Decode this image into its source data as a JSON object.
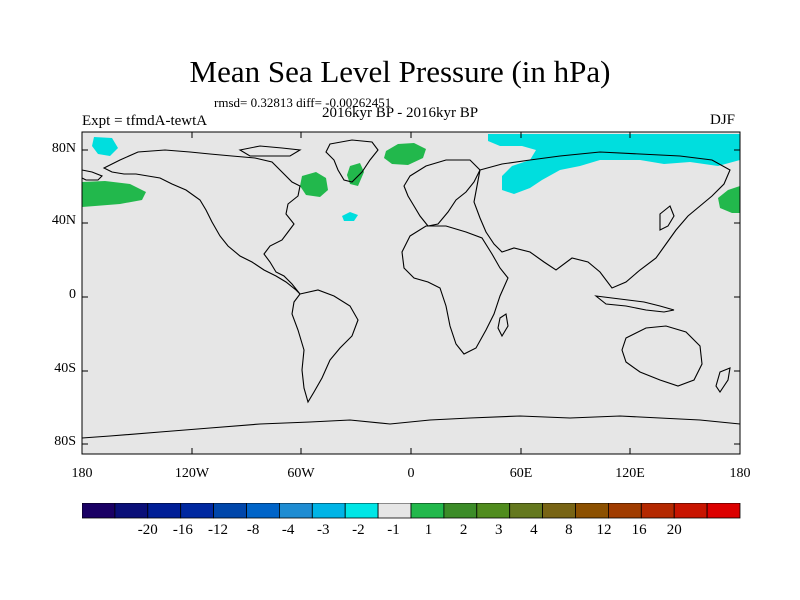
{
  "title": "Mean Sea Level Pressure (in hPa)",
  "stats": "rmsd= 0.32813 diff= -0.00262451",
  "experiment": "Expt = tfmdA-tewtA",
  "subtitle": "2016kyr BP - 2016kyr BP",
  "season": "DJF",
  "map": {
    "background_color": "#e6e6e6",
    "lat_ticks": [
      "80N",
      "40N",
      "0",
      "40S",
      "80S"
    ],
    "lon_ticks": [
      "180",
      "120W",
      "60W",
      "0",
      "60E",
      "120E",
      "180"
    ],
    "anomaly_regions": [
      {
        "name": "anomaly-region-bering-green",
        "color": "#22b84c"
      },
      {
        "name": "anomaly-region-alaska-cyan",
        "color": "#00dede"
      },
      {
        "name": "anomaly-region-north-canada-green",
        "color": "#22b84c"
      },
      {
        "name": "anomaly-region-greenland-green",
        "color": "#22b84c"
      },
      {
        "name": "anomaly-region-arctic-green",
        "color": "#22b84c"
      },
      {
        "name": "anomaly-region-atlantic-cyan",
        "color": "#00dede"
      },
      {
        "name": "anomaly-region-siberia-cyan",
        "color": "#00dede"
      },
      {
        "name": "anomaly-region-kamchatka-green",
        "color": "#22b84c"
      }
    ]
  },
  "colorbar": {
    "colors": [
      "#1a0064",
      "#0a0f78",
      "#001e96",
      "#0028a0",
      "#0046aa",
      "#0064c8",
      "#1e8cd2",
      "#00b4e6",
      "#00e6e6",
      "#e6e6e6",
      "#22b84c",
      "#3c8c28",
      "#508c1e",
      "#64781e",
      "#786414",
      "#8c5000",
      "#a03c00",
      "#b42800",
      "#c81400",
      "#dc0000"
    ],
    "labels": [
      "-20",
      "-16",
      "-12",
      "-8",
      "-4",
      "-3",
      "-2",
      "-1",
      "1",
      "2",
      "3",
      "4",
      "8",
      "12",
      "16",
      "20"
    ]
  }
}
